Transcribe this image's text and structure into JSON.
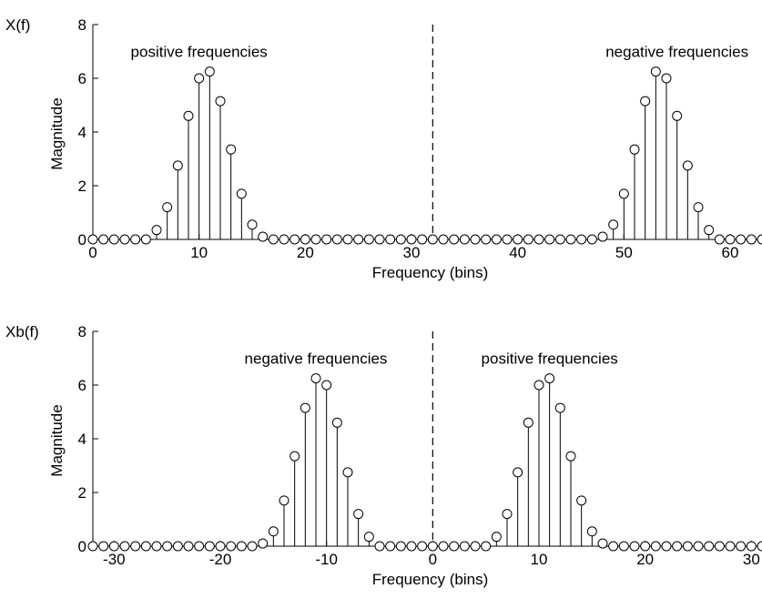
{
  "chart_data": [
    {
      "type": "stem",
      "title": "X(f)",
      "xlabel": "Frequency (bins)",
      "ylabel": "Magnitude",
      "xlim": [
        0,
        63
      ],
      "ylim": [
        0,
        8
      ],
      "xticks": [
        0,
        10,
        20,
        30,
        40,
        50,
        60
      ],
      "yticks": [
        0,
        2,
        4,
        6,
        8
      ],
      "grid": false,
      "x": [
        0,
        1,
        2,
        3,
        4,
        5,
        6,
        7,
        8,
        9,
        10,
        11,
        12,
        13,
        14,
        15,
        16,
        17,
        18,
        19,
        20,
        21,
        22,
        23,
        24,
        25,
        26,
        27,
        28,
        29,
        30,
        31,
        32,
        33,
        34,
        35,
        36,
        37,
        38,
        39,
        40,
        41,
        42,
        43,
        44,
        45,
        46,
        47,
        48,
        49,
        50,
        51,
        52,
        53,
        54,
        55,
        56,
        57,
        58,
        59,
        60,
        61,
        62,
        63
      ],
      "y": [
        0,
        0,
        0,
        0,
        0,
        0,
        0.35,
        1.2,
        2.75,
        4.6,
        6.0,
        6.25,
        5.15,
        3.35,
        1.7,
        0.55,
        0.1,
        0,
        0,
        0,
        0,
        0,
        0,
        0,
        0,
        0,
        0,
        0,
        0,
        0,
        0,
        0,
        0,
        0,
        0,
        0,
        0,
        0,
        0,
        0,
        0,
        0,
        0,
        0,
        0,
        0,
        0,
        0,
        0.1,
        0.55,
        1.7,
        3.35,
        5.15,
        6.25,
        6.0,
        4.6,
        2.75,
        1.2,
        0.35,
        0,
        0,
        0,
        0,
        0
      ],
      "divider_x": 32,
      "annotations": [
        {
          "text": "positive frequencies",
          "x": 10,
          "y": 7.0
        },
        {
          "text": "negative frequencies",
          "x": 55,
          "y": 7.0
        }
      ]
    },
    {
      "type": "stem",
      "title": "Xb(f)",
      "xlabel": "Frequency (bins)",
      "ylabel": "Magnitude",
      "xlim": [
        -32,
        31
      ],
      "ylim": [
        0,
        8
      ],
      "xticks": [
        -30,
        -20,
        -10,
        0,
        10,
        20,
        30
      ],
      "yticks": [
        0,
        2,
        4,
        6,
        8
      ],
      "grid": false,
      "x": [
        -32,
        -31,
        -30,
        -29,
        -28,
        -27,
        -26,
        -25,
        -24,
        -23,
        -22,
        -21,
        -20,
        -19,
        -18,
        -17,
        -16,
        -15,
        -14,
        -13,
        -12,
        -11,
        -10,
        -9,
        -8,
        -7,
        -6,
        -5,
        -4,
        -3,
        -2,
        -1,
        0,
        1,
        2,
        3,
        4,
        5,
        6,
        7,
        8,
        9,
        10,
        11,
        12,
        13,
        14,
        15,
        16,
        17,
        18,
        19,
        20,
        21,
        22,
        23,
        24,
        25,
        26,
        27,
        28,
        29,
        30,
        31
      ],
      "y": [
        0,
        0,
        0,
        0,
        0,
        0,
        0,
        0,
        0,
        0,
        0,
        0,
        0,
        0,
        0,
        0,
        0.1,
        0.55,
        1.7,
        3.35,
        5.15,
        6.25,
        6.0,
        4.6,
        2.75,
        1.2,
        0.35,
        0,
        0,
        0,
        0,
        0,
        0,
        0,
        0,
        0,
        0,
        0,
        0.35,
        1.2,
        2.75,
        4.6,
        6.0,
        6.25,
        5.15,
        3.35,
        1.7,
        0.55,
        0.1,
        0,
        0,
        0,
        0,
        0,
        0,
        0,
        0,
        0,
        0,
        0,
        0,
        0,
        0,
        0
      ],
      "divider_x": 0,
      "annotations": [
        {
          "text": "negative frequencies",
          "x": -11,
          "y": 7.0
        },
        {
          "text": "positive frequencies",
          "x": 11,
          "y": 7.0
        }
      ]
    }
  ]
}
